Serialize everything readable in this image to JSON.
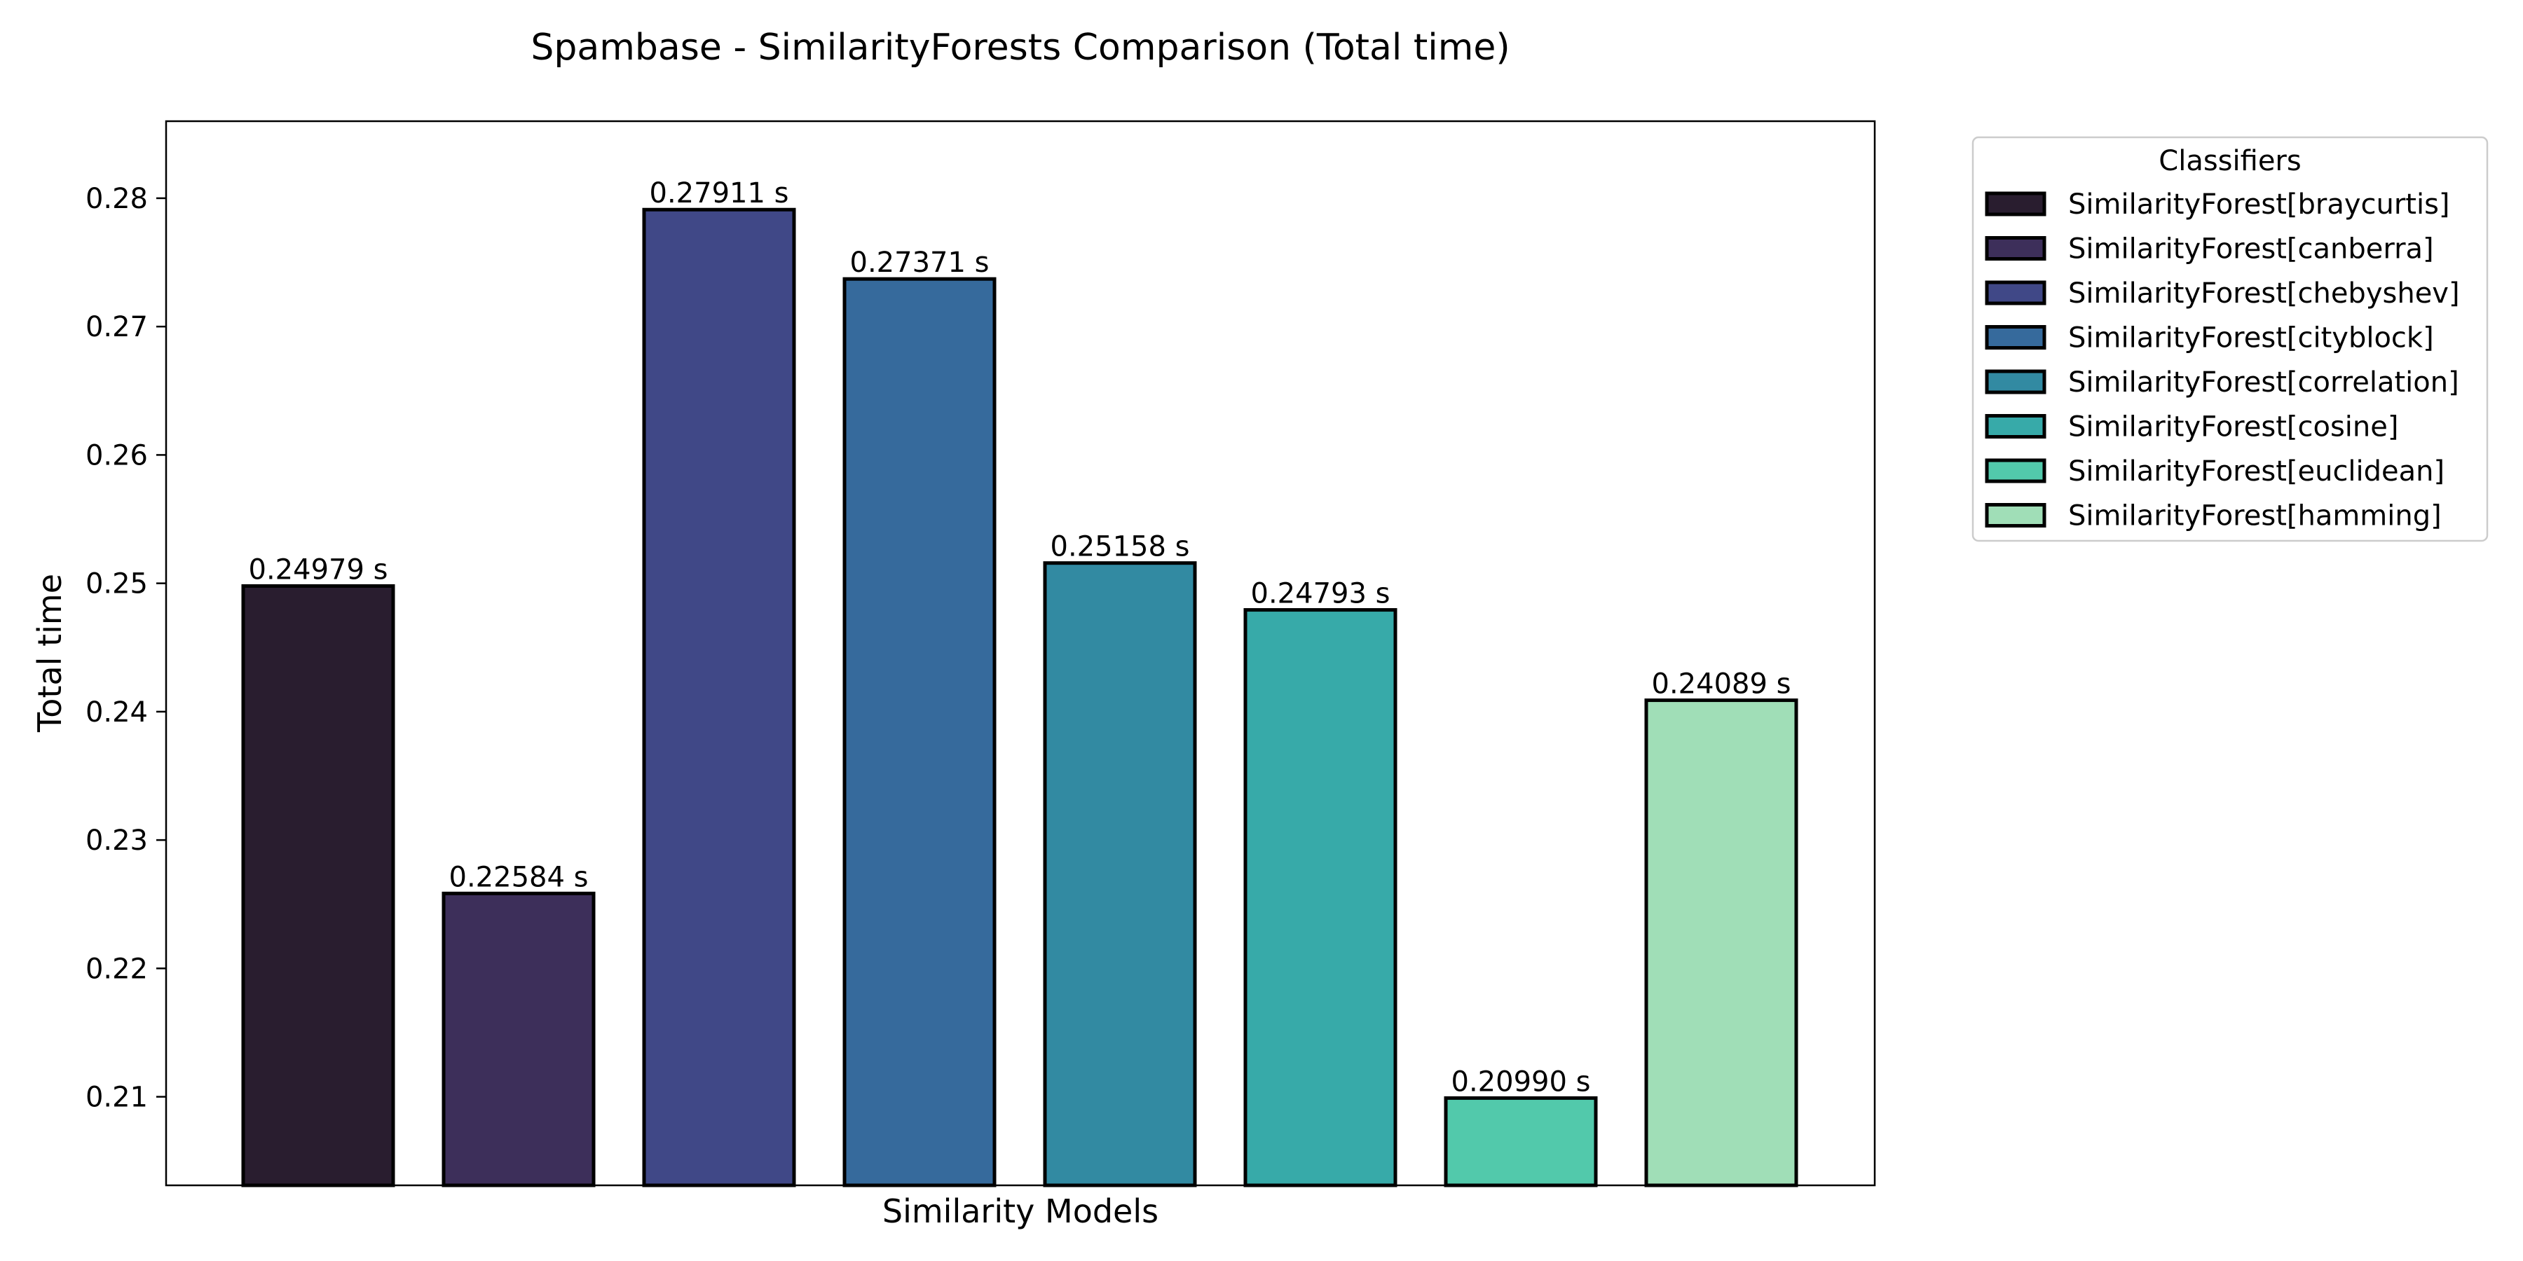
{
  "chart_data": {
    "type": "bar",
    "title": "Spambase - SimilarityForests Comparison (Total time)",
    "xlabel": "Similarity Models",
    "ylabel": "Total time",
    "ylim": [
      0.2031,
      0.286
    ],
    "yticks": [
      0.21,
      0.22,
      0.23,
      0.24,
      0.25,
      0.26,
      0.27,
      0.28
    ],
    "ytick_labels": [
      "0.21",
      "0.22",
      "0.23",
      "0.24",
      "0.25",
      "0.26",
      "0.27",
      "0.28"
    ],
    "grid": false,
    "legend_placement": "outside-top-right",
    "legend_title": "Classifiers",
    "categories": [
      "SimilarityForest[braycurtis]",
      "SimilarityForest[canberra]",
      "SimilarityForest[chebyshev]",
      "SimilarityForest[cityblock]",
      "SimilarityForest[correlation]",
      "SimilarityForest[cosine]",
      "SimilarityForest[euclidean]",
      "SimilarityForest[hamming]"
    ],
    "values": [
      0.24979,
      0.22584,
      0.27911,
      0.27371,
      0.25158,
      0.24793,
      0.2099,
      0.24089
    ],
    "value_labels": [
      "0.24979 s",
      "0.22584 s",
      "0.27911 s",
      "0.27371 s",
      "0.25158 s",
      "0.24793 s",
      "0.20990 s",
      "0.24089 s"
    ],
    "colors": [
      "#291d2f",
      "#3d2f5a",
      "#404887",
      "#366a9c",
      "#328aa2",
      "#37aaa9",
      "#52c9ab",
      "#a0deb7"
    ],
    "edge_color": "#000000"
  }
}
